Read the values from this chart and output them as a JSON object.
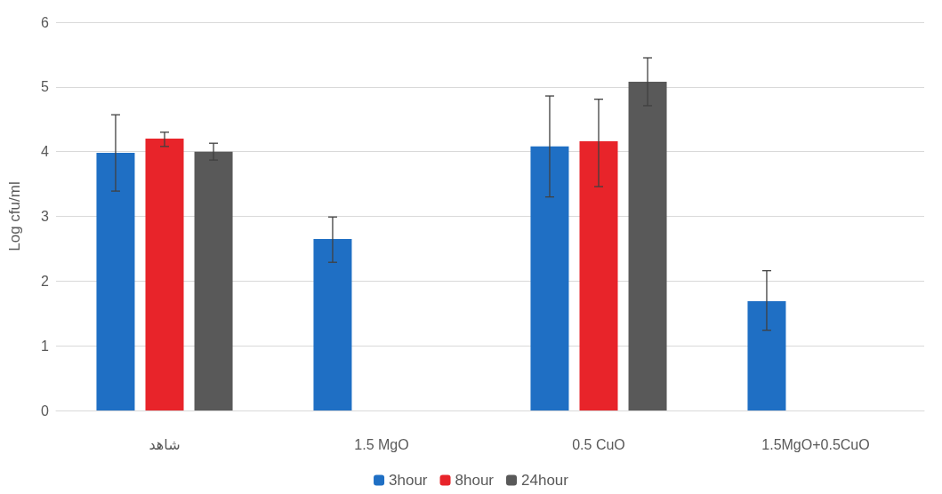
{
  "chart_data": {
    "type": "bar",
    "ylabel": "Log cfu/ml",
    "categories": [
      "شاهد",
      "1.5 MgO",
      "0.5 CuO",
      "1.5MgO+0.5CuO"
    ],
    "series": [
      {
        "name": "3hour",
        "color": "#1f6fc4",
        "values": [
          3.98,
          2.65,
          4.08,
          1.69
        ],
        "errors": [
          [
            3.39,
            4.57
          ],
          [
            2.29,
            2.99
          ],
          [
            3.3,
            4.86
          ],
          [
            1.24,
            2.16
          ]
        ]
      },
      {
        "name": "8hour",
        "color": "#e8242a",
        "values": [
          4.2,
          0,
          4.16,
          0
        ],
        "errors": [
          [
            4.08,
            4.3
          ],
          null,
          [
            3.46,
            4.81
          ],
          null
        ]
      },
      {
        "name": "24hour",
        "color": "#595959",
        "values": [
          4.0,
          0,
          5.08,
          0
        ],
        "errors": [
          [
            3.87,
            4.13
          ],
          null,
          [
            4.71,
            5.45
          ],
          null
        ]
      }
    ],
    "ylim": [
      0,
      6
    ],
    "yticks": [
      0,
      1,
      2,
      3,
      4,
      5,
      6
    ],
    "grid": "y",
    "legend": "bottom"
  }
}
